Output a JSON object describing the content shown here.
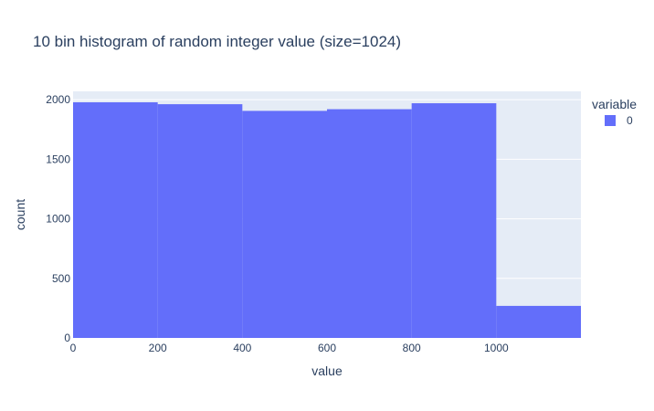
{
  "chart_data": {
    "type": "bar",
    "title": "10 bin histogram of random integer value (size=1024)",
    "xlabel": "value",
    "ylabel": "count",
    "xlim": [
      0,
      1200
    ],
    "ylim": [
      0,
      2070
    ],
    "x_ticks": [
      0,
      200,
      400,
      600,
      800,
      1000
    ],
    "y_ticks": [
      0,
      500,
      1000,
      1500,
      2000
    ],
    "grid": true,
    "legend": {
      "title": "variable",
      "placement": "top-right"
    },
    "series": [
      {
        "name": "0",
        "color": "#636efa",
        "bins": [
          {
            "x0": 0,
            "x1": 200,
            "value": 1978
          },
          {
            "x0": 200,
            "x1": 400,
            "value": 1962
          },
          {
            "x0": 400,
            "x1": 600,
            "value": 1906
          },
          {
            "x0": 600,
            "x1": 800,
            "value": 1920
          },
          {
            "x0": 800,
            "x1": 1000,
            "value": 1970
          },
          {
            "x0": 1000,
            "x1": 1200,
            "value": 269
          }
        ]
      }
    ],
    "plot_bg": "#e5ecf6"
  }
}
